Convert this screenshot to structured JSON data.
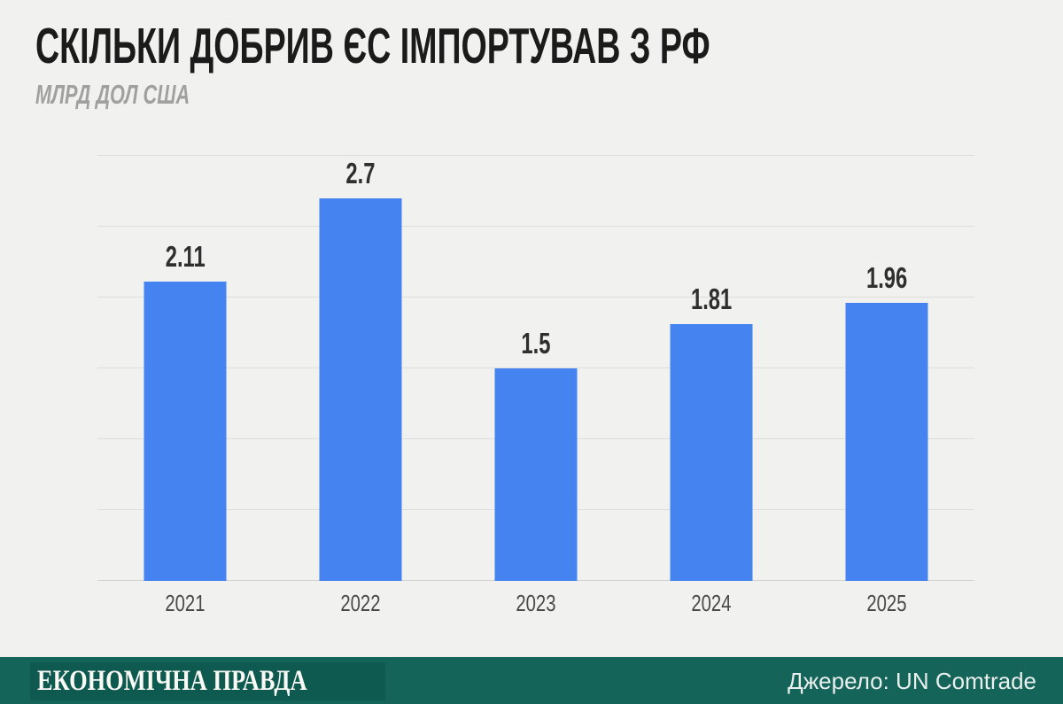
{
  "header": {
    "title": "СКІЛЬКИ ДОБРИВ ЄС ІМПОРТУВАВ З РФ",
    "subtitle": "МЛРД ДОЛ США"
  },
  "chart_data": {
    "type": "bar",
    "title": "СКІЛЬКИ ДОБРИВ ЄС ІМПОРТУВАВ З РФ",
    "subtitle": "МЛРД ДОЛ США",
    "categories": [
      "2021",
      "2022",
      "2023",
      "2024",
      "2025"
    ],
    "values": [
      2.11,
      2.7,
      1.5,
      1.81,
      1.96
    ],
    "value_labels": [
      "2.11",
      "2.7",
      "1.5",
      "1.81",
      "1.96"
    ],
    "xlabel": "",
    "ylabel": "МЛРД ДОЛ США",
    "ylim": [
      0,
      3
    ],
    "grid_step": 0.5,
    "grid": "on",
    "legend": "none",
    "bar_color": "#4584F0"
  },
  "footer": {
    "logo": "ЕКОНОМІЧНА ПРАВДА",
    "source": "Джерело: UN Comtrade"
  },
  "colors": {
    "background": "#F1F1EF",
    "bar": "#4584F0",
    "gridline": "#DEDEDE",
    "title_text": "#1B1B1B",
    "subtitle_text": "#A0A0A0",
    "value_label_text": "#2F2F2F",
    "axis_label_text": "#494949",
    "footer_background": "#15645A",
    "logo_box_background": "#0F5A50",
    "footer_text": "#E9EFEC"
  }
}
